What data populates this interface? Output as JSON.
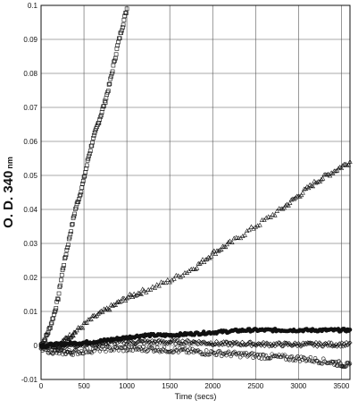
{
  "chart_data": {
    "type": "scatter",
    "title": "",
    "xlabel": "Time (secs)",
    "ylabel": "O. D. 340",
    "ylabel_unit": "nm",
    "xlim": [
      0,
      3600
    ],
    "ylim": [
      -0.01,
      0.1
    ],
    "grid": true,
    "x_ticks": [
      "0",
      "500",
      "1000",
      "1500",
      "2000",
      "2500",
      "3000",
      "3500"
    ],
    "y_ticks": [
      "-0.01",
      "0",
      "0.01",
      "0.02",
      "0.03",
      "0.04",
      "0.05",
      "0.06",
      "0.07",
      "0.08",
      "0.09",
      "0.1"
    ],
    "series": [
      {
        "marker": "square-open",
        "points": [
          [
            0,
            0.0
          ],
          [
            50,
            0.002
          ],
          [
            100,
            0.005
          ],
          [
            150,
            0.009
          ],
          [
            200,
            0.014
          ],
          [
            250,
            0.022
          ],
          [
            300,
            0.028
          ],
          [
            350,
            0.034
          ],
          [
            400,
            0.04
          ],
          [
            450,
            0.044
          ],
          [
            500,
            0.049
          ],
          [
            550,
            0.055
          ],
          [
            600,
            0.06
          ],
          [
            650,
            0.064
          ],
          [
            700,
            0.068
          ],
          [
            750,
            0.072
          ],
          [
            800,
            0.077
          ],
          [
            850,
            0.083
          ],
          [
            900,
            0.089
          ],
          [
            950,
            0.094
          ],
          [
            1000,
            0.099
          ]
        ]
      },
      {
        "marker": "triangle-open",
        "points": [
          [
            0,
            0.0
          ],
          [
            200,
            0.0
          ],
          [
            300,
            0.002
          ],
          [
            400,
            0.004
          ],
          [
            600,
            0.008
          ],
          [
            800,
            0.011
          ],
          [
            1000,
            0.014
          ],
          [
            1200,
            0.016
          ],
          [
            1500,
            0.019
          ],
          [
            1800,
            0.023
          ],
          [
            2000,
            0.027
          ],
          [
            2200,
            0.03
          ],
          [
            2500,
            0.035
          ],
          [
            2800,
            0.04
          ],
          [
            3000,
            0.044
          ],
          [
            3200,
            0.048
          ],
          [
            3400,
            0.051
          ],
          [
            3600,
            0.054
          ]
        ]
      },
      {
        "marker": "circle-filled",
        "points": [
          [
            0,
            0.0
          ],
          [
            300,
            0.0005
          ],
          [
            600,
            0.001
          ],
          [
            900,
            0.002
          ],
          [
            1200,
            0.003
          ],
          [
            1500,
            0.003
          ],
          [
            1800,
            0.0035
          ],
          [
            2100,
            0.004
          ],
          [
            2400,
            0.0045
          ],
          [
            2700,
            0.0045
          ],
          [
            3000,
            0.0045
          ],
          [
            3300,
            0.0045
          ],
          [
            3600,
            0.0045
          ]
        ]
      },
      {
        "marker": "diamond-open",
        "points": [
          [
            0,
            0.0
          ],
          [
            300,
            0.0
          ],
          [
            600,
            0.0005
          ],
          [
            900,
            0.001
          ],
          [
            1200,
            0.001
          ],
          [
            1500,
            0.001
          ],
          [
            1800,
            0.001
          ],
          [
            2100,
            0.0005
          ],
          [
            2400,
            0.0005
          ],
          [
            2700,
            0.0003
          ],
          [
            3000,
            0.0003
          ],
          [
            3300,
            0.0003
          ],
          [
            3600,
            0.0003
          ]
        ]
      },
      {
        "marker": "circle-open",
        "points": [
          [
            0,
            -0.001
          ],
          [
            200,
            -0.002
          ],
          [
            400,
            -0.002
          ],
          [
            700,
            -0.001
          ],
          [
            1000,
            -0.001
          ],
          [
            1300,
            -0.001
          ],
          [
            1600,
            -0.0015
          ],
          [
            1900,
            -0.002
          ],
          [
            2200,
            -0.0025
          ],
          [
            2500,
            -0.003
          ],
          [
            2800,
            -0.0035
          ],
          [
            3100,
            -0.004
          ],
          [
            3400,
            -0.005
          ],
          [
            3600,
            -0.006
          ]
        ]
      }
    ]
  }
}
